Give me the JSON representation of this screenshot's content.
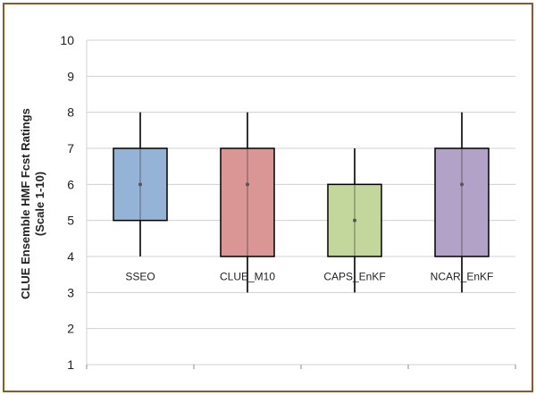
{
  "chart_data": {
    "type": "boxplot",
    "title": "",
    "xlabel": "",
    "ylabel": "CLUE Ensemble HMF Fcst Ratings",
    "ylabel_sub": "(Scale 1-10)",
    "ylim": [
      1,
      10
    ],
    "yticks": [
      1,
      2,
      3,
      4,
      5,
      6,
      7,
      8,
      9,
      10
    ],
    "grid": true,
    "categories": [
      "SSEO",
      "CLUE_M10",
      "CAPS_EnKF",
      "NCAR_EnKF"
    ],
    "boxes": [
      {
        "label": "SSEO",
        "min": 4,
        "q1": 5,
        "median": 6,
        "q3": 7,
        "max": 8,
        "color": "#95b3d7"
      },
      {
        "label": "CLUE_M10",
        "min": 3,
        "q1": 4,
        "median": 6,
        "q3": 7,
        "max": 8,
        "color": "#d99694"
      },
      {
        "label": "CAPS_EnKF",
        "min": 3,
        "q1": 4,
        "median": 5,
        "q3": 6,
        "max": 7,
        "color": "#c3d69b"
      },
      {
        "label": "NCAR_EnKF",
        "min": 3,
        "q1": 4,
        "median": 6,
        "q3": 7,
        "max": 8,
        "color": "#b3a2c7"
      }
    ]
  },
  "colors": {
    "frame": "#8a5a2b",
    "grid": "#d0d0d0",
    "whisker": "#333333"
  }
}
